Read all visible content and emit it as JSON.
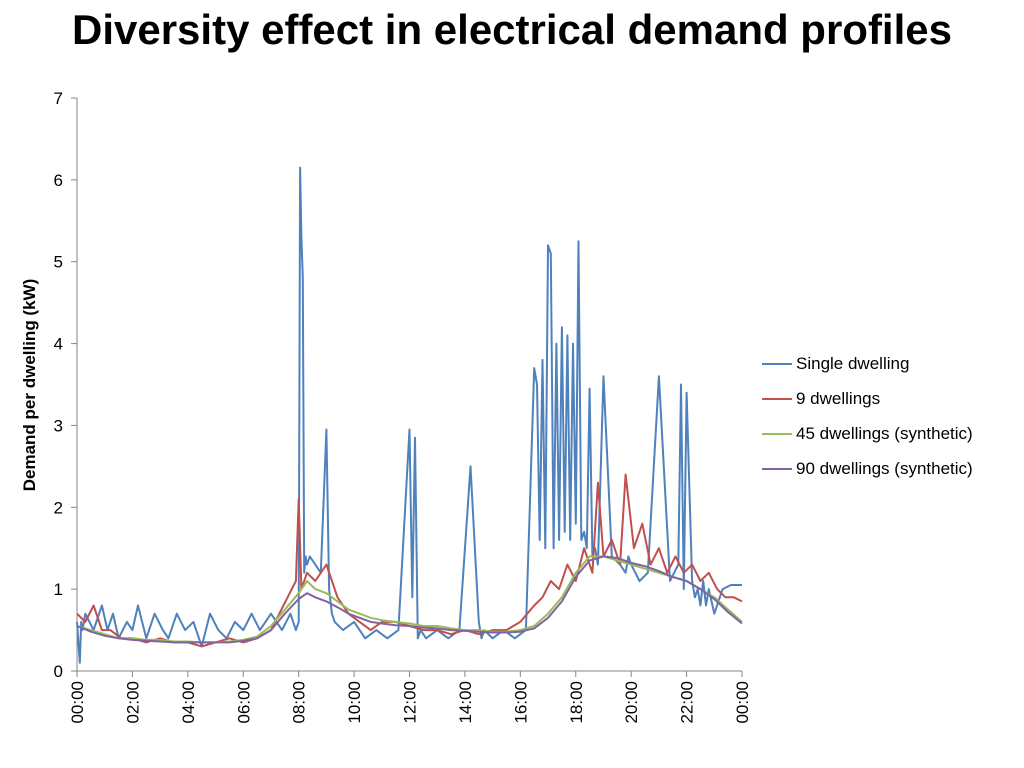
{
  "chart_data": {
    "type": "line",
    "title": "Diversity effect in electrical demand profiles",
    "xlabel": "",
    "ylabel": "Demand per dwelling (kW)",
    "ylim": [
      0,
      7
    ],
    "yticks": [
      "0",
      "1",
      "2",
      "3",
      "4",
      "5",
      "6",
      "7"
    ],
    "xlim": [
      0,
      24
    ],
    "xticks": [
      "00:00",
      "02:00",
      "04:00",
      "06:00",
      "08:00",
      "10:00",
      "12:00",
      "14:00",
      "16:00",
      "18:00",
      "20:00",
      "22:00",
      "00:00"
    ],
    "grid": false,
    "legend_position": "right",
    "series": [
      {
        "name": "Single dwelling",
        "color": "#4f81bd",
        "x": [
          0,
          0.1,
          0.15,
          0.2,
          0.3,
          0.6,
          0.9,
          1.1,
          1.3,
          1.5,
          1.8,
          2.0,
          2.2,
          2.5,
          2.8,
          3.1,
          3.3,
          3.6,
          3.9,
          4.2,
          4.5,
          4.8,
          5.1,
          5.4,
          5.7,
          6.0,
          6.3,
          6.6,
          7.0,
          7.4,
          7.7,
          7.9,
          8.0,
          8.05,
          8.1,
          8.15,
          8.2,
          8.25,
          8.3,
          8.4,
          8.6,
          8.8,
          9.0,
          9.1,
          9.2,
          9.3,
          9.6,
          10.0,
          10.4,
          10.8,
          11.2,
          11.6,
          12.0,
          12.1,
          12.2,
          12.3,
          12.4,
          12.6,
          13.0,
          13.4,
          13.8,
          14.2,
          14.5,
          14.55,
          14.6,
          14.7,
          15.0,
          15.4,
          15.8,
          16.2,
          16.5,
          16.6,
          16.7,
          16.8,
          16.9,
          17.0,
          17.1,
          17.2,
          17.3,
          17.4,
          17.5,
          17.6,
          17.7,
          17.8,
          17.9,
          18.0,
          18.1,
          18.2,
          18.3,
          18.4,
          18.5,
          18.6,
          18.7,
          18.8,
          19.0,
          19.3,
          19.6,
          19.8,
          19.9,
          20.0,
          20.3,
          20.6,
          21.0,
          21.4,
          21.7,
          21.8,
          21.9,
          22.0,
          22.2,
          22.3,
          22.4,
          22.5,
          22.6,
          22.7,
          22.8,
          23.0,
          23.3,
          23.6,
          23.8,
          24.0
        ],
        "values": [
          0.6,
          0.1,
          0.6,
          0.5,
          0.7,
          0.5,
          0.8,
          0.5,
          0.7,
          0.4,
          0.6,
          0.5,
          0.8,
          0.4,
          0.7,
          0.5,
          0.4,
          0.7,
          0.5,
          0.6,
          0.3,
          0.7,
          0.5,
          0.4,
          0.6,
          0.5,
          0.7,
          0.5,
          0.7,
          0.5,
          0.7,
          0.5,
          0.6,
          6.15,
          5.3,
          4.8,
          1.2,
          1.4,
          1.3,
          1.4,
          1.3,
          1.2,
          2.95,
          1.0,
          0.7,
          0.6,
          0.5,
          0.6,
          0.4,
          0.5,
          0.4,
          0.5,
          2.95,
          0.9,
          2.85,
          0.4,
          0.5,
          0.4,
          0.5,
          0.4,
          0.5,
          2.5,
          0.6,
          0.5,
          0.4,
          0.5,
          0.4,
          0.5,
          0.4,
          0.5,
          3.7,
          3.5,
          1.6,
          3.8,
          1.5,
          5.2,
          5.1,
          1.5,
          4.0,
          1.6,
          4.2,
          1.7,
          4.1,
          1.6,
          4.0,
          1.8,
          5.25,
          1.6,
          1.7,
          1.5,
          3.45,
          1.4,
          1.5,
          1.3,
          3.6,
          1.4,
          1.3,
          1.2,
          1.4,
          1.3,
          1.1,
          1.2,
          3.6,
          1.1,
          1.3,
          3.5,
          1.0,
          3.4,
          1.1,
          0.9,
          1.0,
          0.8,
          1.1,
          0.8,
          1.0,
          0.7,
          1.0,
          1.05,
          1.05,
          1.05
        ]
      },
      {
        "name": "9 dwellings",
        "color": "#c0504d",
        "x": [
          0,
          0.3,
          0.6,
          0.9,
          1.2,
          1.6,
          2.0,
          2.5,
          3.0,
          3.5,
          4.0,
          4.5,
          5.0,
          5.5,
          6.0,
          6.5,
          7.0,
          7.3,
          7.6,
          7.9,
          8.0,
          8.1,
          8.3,
          8.6,
          9.0,
          9.4,
          9.8,
          10.2,
          10.6,
          11.0,
          11.5,
          12.0,
          12.5,
          13.0,
          13.5,
          14.0,
          14.5,
          15.0,
          15.5,
          16.0,
          16.5,
          16.8,
          17.1,
          17.4,
          17.7,
          18.0,
          18.3,
          18.6,
          18.8,
          19.0,
          19.3,
          19.6,
          19.8,
          20.1,
          20.4,
          20.7,
          21.0,
          21.3,
          21.6,
          21.9,
          22.2,
          22.5,
          22.8,
          23.1,
          23.4,
          23.7,
          24.0
        ],
        "values": [
          0.7,
          0.6,
          0.8,
          0.5,
          0.5,
          0.4,
          0.4,
          0.35,
          0.4,
          0.35,
          0.35,
          0.3,
          0.35,
          0.4,
          0.35,
          0.4,
          0.5,
          0.7,
          0.9,
          1.1,
          2.1,
          1.0,
          1.2,
          1.1,
          1.3,
          0.9,
          0.7,
          0.6,
          0.5,
          0.6,
          0.6,
          0.55,
          0.5,
          0.5,
          0.45,
          0.5,
          0.45,
          0.5,
          0.5,
          0.6,
          0.8,
          0.9,
          1.1,
          1.0,
          1.3,
          1.1,
          1.5,
          1.2,
          2.3,
          1.4,
          1.6,
          1.3,
          2.4,
          1.5,
          1.8,
          1.3,
          1.5,
          1.2,
          1.4,
          1.2,
          1.3,
          1.1,
          1.2,
          1.0,
          0.9,
          0.9,
          0.85
        ]
      },
      {
        "name": "45 dwellings (synthetic)",
        "color": "#9bbb59",
        "x": [
          0,
          0.5,
          1.0,
          1.5,
          2.0,
          2.5,
          3.0,
          3.5,
          4.0,
          4.5,
          5.0,
          5.5,
          6.0,
          6.5,
          7.0,
          7.5,
          8.0,
          8.3,
          8.6,
          9.0,
          9.4,
          9.8,
          10.2,
          10.6,
          11.0,
          11.5,
          12.0,
          12.5,
          13.0,
          13.5,
          14.0,
          14.5,
          15.0,
          15.5,
          16.0,
          16.5,
          17.0,
          17.5,
          18.0,
          18.5,
          19.0,
          19.5,
          20.0,
          20.5,
          21.0,
          21.5,
          22.0,
          22.5,
          23.0,
          23.5,
          24.0
        ],
        "values": [
          0.55,
          0.5,
          0.45,
          0.4,
          0.4,
          0.38,
          0.38,
          0.36,
          0.36,
          0.35,
          0.35,
          0.36,
          0.38,
          0.42,
          0.55,
          0.75,
          0.95,
          1.1,
          1.0,
          0.95,
          0.85,
          0.75,
          0.7,
          0.65,
          0.62,
          0.6,
          0.58,
          0.55,
          0.55,
          0.52,
          0.5,
          0.5,
          0.48,
          0.48,
          0.5,
          0.55,
          0.7,
          0.9,
          1.2,
          1.4,
          1.4,
          1.35,
          1.3,
          1.25,
          1.2,
          1.15,
          1.1,
          1.0,
          0.9,
          0.75,
          0.6
        ]
      },
      {
        "name": "90 dwellings (synthetic)",
        "color": "#8064a2",
        "x": [
          0,
          0.5,
          1.0,
          1.5,
          2.0,
          2.5,
          3.0,
          3.5,
          4.0,
          4.5,
          5.0,
          5.5,
          6.0,
          6.5,
          7.0,
          7.5,
          8.0,
          8.3,
          8.6,
          9.0,
          9.4,
          9.8,
          10.2,
          10.6,
          11.0,
          11.5,
          12.0,
          12.5,
          13.0,
          13.5,
          14.0,
          14.5,
          15.0,
          15.5,
          16.0,
          16.5,
          17.0,
          17.5,
          18.0,
          18.5,
          19.0,
          19.5,
          20.0,
          20.5,
          21.0,
          21.5,
          22.0,
          22.5,
          23.0,
          23.5,
          24.0
        ],
        "values": [
          0.55,
          0.48,
          0.43,
          0.4,
          0.38,
          0.37,
          0.36,
          0.35,
          0.35,
          0.35,
          0.35,
          0.35,
          0.37,
          0.4,
          0.5,
          0.7,
          0.88,
          0.95,
          0.9,
          0.85,
          0.78,
          0.7,
          0.65,
          0.6,
          0.58,
          0.56,
          0.55,
          0.53,
          0.52,
          0.5,
          0.49,
          0.48,
          0.47,
          0.47,
          0.48,
          0.52,
          0.65,
          0.85,
          1.15,
          1.35,
          1.4,
          1.38,
          1.32,
          1.28,
          1.22,
          1.15,
          1.1,
          1.0,
          0.88,
          0.72,
          0.58
        ]
      }
    ]
  }
}
